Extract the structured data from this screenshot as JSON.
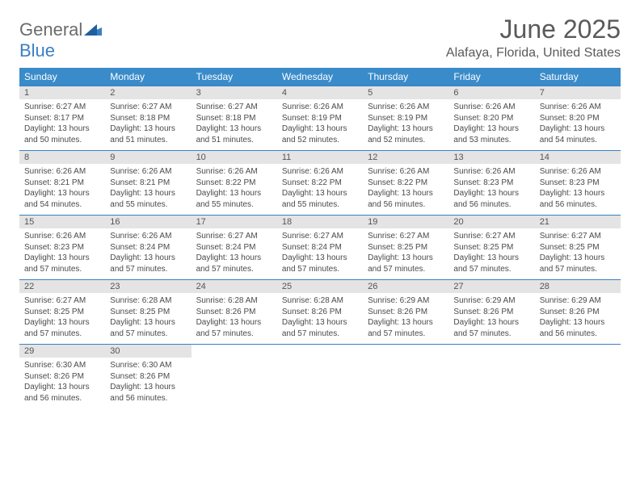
{
  "logo": {
    "general": "General",
    "blue": "Blue"
  },
  "header": {
    "month_title": "June 2025",
    "location": "Alafaya, Florida, United States"
  },
  "colors": {
    "header_bg": "#3a8bc9",
    "accent": "#3a7fc4",
    "daynum_bg": "#e4e4e4",
    "text": "#4a4a4a",
    "page_bg": "#ffffff"
  },
  "typography": {
    "month_title_fontsize": 32,
    "location_fontsize": 16,
    "day_header_fontsize": 12,
    "daynum_fontsize": 11,
    "body_fontsize": 10
  },
  "calendar": {
    "day_headers": [
      "Sunday",
      "Monday",
      "Tuesday",
      "Wednesday",
      "Thursday",
      "Friday",
      "Saturday"
    ],
    "weeks": [
      [
        {
          "num": "1",
          "sunrise": "6:27 AM",
          "sunset": "8:17 PM",
          "daylight": "13 hours and 50 minutes."
        },
        {
          "num": "2",
          "sunrise": "6:27 AM",
          "sunset": "8:18 PM",
          "daylight": "13 hours and 51 minutes."
        },
        {
          "num": "3",
          "sunrise": "6:27 AM",
          "sunset": "8:18 PM",
          "daylight": "13 hours and 51 minutes."
        },
        {
          "num": "4",
          "sunrise": "6:26 AM",
          "sunset": "8:19 PM",
          "daylight": "13 hours and 52 minutes."
        },
        {
          "num": "5",
          "sunrise": "6:26 AM",
          "sunset": "8:19 PM",
          "daylight": "13 hours and 52 minutes."
        },
        {
          "num": "6",
          "sunrise": "6:26 AM",
          "sunset": "8:20 PM",
          "daylight": "13 hours and 53 minutes."
        },
        {
          "num": "7",
          "sunrise": "6:26 AM",
          "sunset": "8:20 PM",
          "daylight": "13 hours and 54 minutes."
        }
      ],
      [
        {
          "num": "8",
          "sunrise": "6:26 AM",
          "sunset": "8:21 PM",
          "daylight": "13 hours and 54 minutes."
        },
        {
          "num": "9",
          "sunrise": "6:26 AM",
          "sunset": "8:21 PM",
          "daylight": "13 hours and 55 minutes."
        },
        {
          "num": "10",
          "sunrise": "6:26 AM",
          "sunset": "8:22 PM",
          "daylight": "13 hours and 55 minutes."
        },
        {
          "num": "11",
          "sunrise": "6:26 AM",
          "sunset": "8:22 PM",
          "daylight": "13 hours and 55 minutes."
        },
        {
          "num": "12",
          "sunrise": "6:26 AM",
          "sunset": "8:22 PM",
          "daylight": "13 hours and 56 minutes."
        },
        {
          "num": "13",
          "sunrise": "6:26 AM",
          "sunset": "8:23 PM",
          "daylight": "13 hours and 56 minutes."
        },
        {
          "num": "14",
          "sunrise": "6:26 AM",
          "sunset": "8:23 PM",
          "daylight": "13 hours and 56 minutes."
        }
      ],
      [
        {
          "num": "15",
          "sunrise": "6:26 AM",
          "sunset": "8:23 PM",
          "daylight": "13 hours and 57 minutes."
        },
        {
          "num": "16",
          "sunrise": "6:26 AM",
          "sunset": "8:24 PM",
          "daylight": "13 hours and 57 minutes."
        },
        {
          "num": "17",
          "sunrise": "6:27 AM",
          "sunset": "8:24 PM",
          "daylight": "13 hours and 57 minutes."
        },
        {
          "num": "18",
          "sunrise": "6:27 AM",
          "sunset": "8:24 PM",
          "daylight": "13 hours and 57 minutes."
        },
        {
          "num": "19",
          "sunrise": "6:27 AM",
          "sunset": "8:25 PM",
          "daylight": "13 hours and 57 minutes."
        },
        {
          "num": "20",
          "sunrise": "6:27 AM",
          "sunset": "8:25 PM",
          "daylight": "13 hours and 57 minutes."
        },
        {
          "num": "21",
          "sunrise": "6:27 AM",
          "sunset": "8:25 PM",
          "daylight": "13 hours and 57 minutes."
        }
      ],
      [
        {
          "num": "22",
          "sunrise": "6:27 AM",
          "sunset": "8:25 PM",
          "daylight": "13 hours and 57 minutes."
        },
        {
          "num": "23",
          "sunrise": "6:28 AM",
          "sunset": "8:25 PM",
          "daylight": "13 hours and 57 minutes."
        },
        {
          "num": "24",
          "sunrise": "6:28 AM",
          "sunset": "8:26 PM",
          "daylight": "13 hours and 57 minutes."
        },
        {
          "num": "25",
          "sunrise": "6:28 AM",
          "sunset": "8:26 PM",
          "daylight": "13 hours and 57 minutes."
        },
        {
          "num": "26",
          "sunrise": "6:29 AM",
          "sunset": "8:26 PM",
          "daylight": "13 hours and 57 minutes."
        },
        {
          "num": "27",
          "sunrise": "6:29 AM",
          "sunset": "8:26 PM",
          "daylight": "13 hours and 57 minutes."
        },
        {
          "num": "28",
          "sunrise": "6:29 AM",
          "sunset": "8:26 PM",
          "daylight": "13 hours and 56 minutes."
        }
      ],
      [
        {
          "num": "29",
          "sunrise": "6:30 AM",
          "sunset": "8:26 PM",
          "daylight": "13 hours and 56 minutes."
        },
        {
          "num": "30",
          "sunrise": "6:30 AM",
          "sunset": "8:26 PM",
          "daylight": "13 hours and 56 minutes."
        },
        null,
        null,
        null,
        null,
        null
      ]
    ],
    "labels": {
      "sunrise_prefix": "Sunrise: ",
      "sunset_prefix": "Sunset: ",
      "daylight_prefix": "Daylight: "
    }
  }
}
